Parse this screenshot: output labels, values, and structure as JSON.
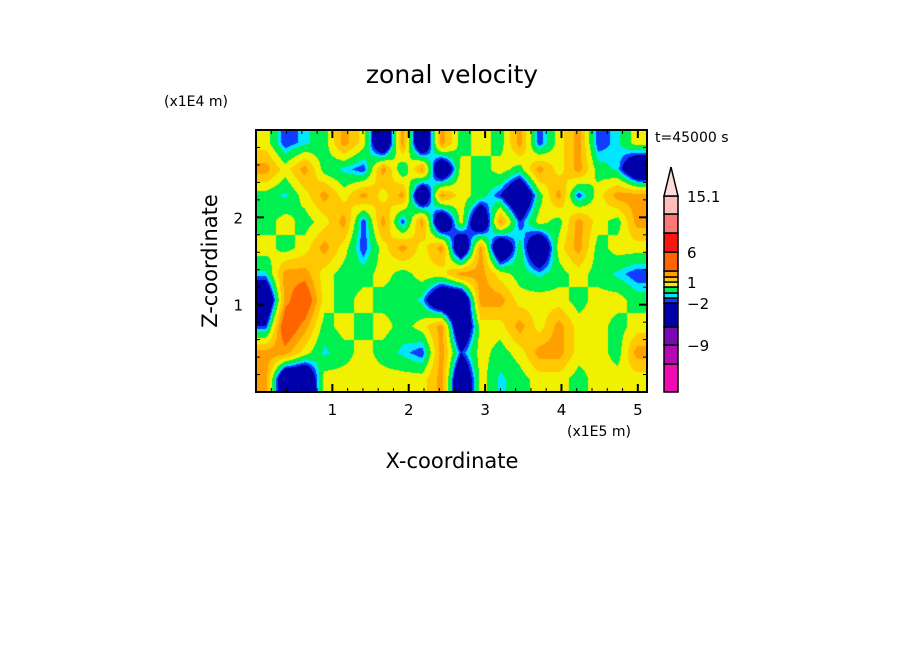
{
  "chart_data": {
    "type": "heatmap",
    "title": "zonal velocity",
    "xlabel": "X-coordinate",
    "ylabel": "Z-coordinate",
    "x_unit": "(x1E5 m)",
    "y_unit": "(x1E4 m)",
    "annotation": "t=45000 s",
    "xlim": [
      0,
      5.12
    ],
    "ylim": [
      0,
      3.0
    ],
    "x_ticks": [
      1,
      2,
      3,
      4,
      5
    ],
    "x_tick_labels": [
      "1",
      "2",
      "3",
      "4",
      "5"
    ],
    "y_ticks": [
      1,
      2
    ],
    "y_tick_labels": [
      "1",
      "2"
    ],
    "colorbar": {
      "levels": [
        -12,
        -9,
        -6,
        -2,
        -1.5,
        -1,
        0,
        1,
        2,
        3,
        6,
        9,
        12,
        15.1
      ],
      "colors": [
        "#f00ab4",
        "#b40ab4",
        "#780ab4",
        "#0000aa",
        "#0f3cff",
        "#00e6ff",
        "#00f050",
        "#f0f000",
        "#ffc800",
        "#ffa000",
        "#ff6400",
        "#ff1414",
        "#ff7878",
        "#ffbebe",
        "#ffdcdc"
      ],
      "labels": [
        {
          "value": 15.1,
          "text": "15.1"
        },
        {
          "value": 6,
          "text": "6"
        },
        {
          "value": 1,
          "text": "1"
        },
        {
          "value": -2,
          "text": "−2"
        },
        {
          "value": -9,
          "text": "−9"
        }
      ],
      "extend": "max"
    },
    "z_grid_top_to_bottom": [
      [
        0.5,
        -2,
        -1.2,
        -0.5,
        2.5,
        0.5,
        -5,
        2.5,
        -5,
        2.5,
        -0.5,
        0.5,
        -0.5,
        2.5,
        -2,
        0.5,
        2.5,
        -2,
        -1.2,
        0.5
      ],
      [
        2.5,
        0.5,
        2.5,
        -0.5,
        -1.2,
        -2,
        2.5,
        -1,
        2.5,
        -5,
        0.5,
        -0.5,
        0.5,
        -0.5,
        2.5,
        0.5,
        2.5,
        -0.5,
        -1.2,
        -5
      ],
      [
        -0.5,
        -1.2,
        0.5,
        2.5,
        0.5,
        2.5,
        0.5,
        2.5,
        -5,
        2.5,
        0.5,
        -0.5,
        -2,
        -5,
        -0.5,
        2.5,
        -2,
        0.5,
        2.5,
        2.5
      ],
      [
        -0.5,
        0.5,
        -0.5,
        0.5,
        2.5,
        -2,
        2.5,
        -2,
        2.5,
        -5,
        0.5,
        -5,
        2.5,
        -2,
        0.5,
        -0.5,
        2.5,
        0.5,
        -0.5,
        2.5
      ],
      [
        0.5,
        -0.5,
        0.5,
        2.5,
        0.5,
        -2,
        0.5,
        2.5,
        0.5,
        2.5,
        -5,
        2.5,
        -5,
        -0.5,
        -5,
        0.5,
        2.5,
        -0.5,
        0.5,
        0.5
      ],
      [
        -1.2,
        2.5,
        2.5,
        0.5,
        -0.5,
        -0.5,
        0.5,
        -0.5,
        0.5,
        0.5,
        2.5,
        2.5,
        0.5,
        -0.5,
        -1.2,
        -0.5,
        0.5,
        -0.5,
        -1.2,
        -2
      ],
      [
        -5,
        2.5,
        4.5,
        0.5,
        -0.5,
        0.5,
        -0.5,
        -0.5,
        -1.2,
        -5,
        -5,
        2.5,
        2.5,
        0.5,
        0.5,
        0.5,
        -0.5,
        0.5,
        0.5,
        -0.5
      ],
      [
        -2,
        4.5,
        2.5,
        -0.5,
        0.5,
        -0.5,
        0.5,
        -0.5,
        0.5,
        2.5,
        -5,
        0.5,
        0.5,
        2.5,
        0.5,
        2.5,
        0.5,
        0.5,
        -0.5,
        0.5
      ],
      [
        2.5,
        2.5,
        0.5,
        -1.2,
        -0.5,
        0.5,
        -0.5,
        -1.2,
        -2,
        2.5,
        -2,
        0.5,
        -0.5,
        0.5,
        2.5,
        2.5,
        0.5,
        0.5,
        -0.5,
        2.5
      ],
      [
        2.5,
        -5,
        -5,
        0.5,
        0.5,
        0.5,
        0.5,
        0.5,
        0.5,
        2.5,
        -5,
        0.5,
        -1.2,
        -0.5,
        0.5,
        0.5,
        -0.5,
        0.5,
        0.5,
        0.5
      ]
    ]
  }
}
